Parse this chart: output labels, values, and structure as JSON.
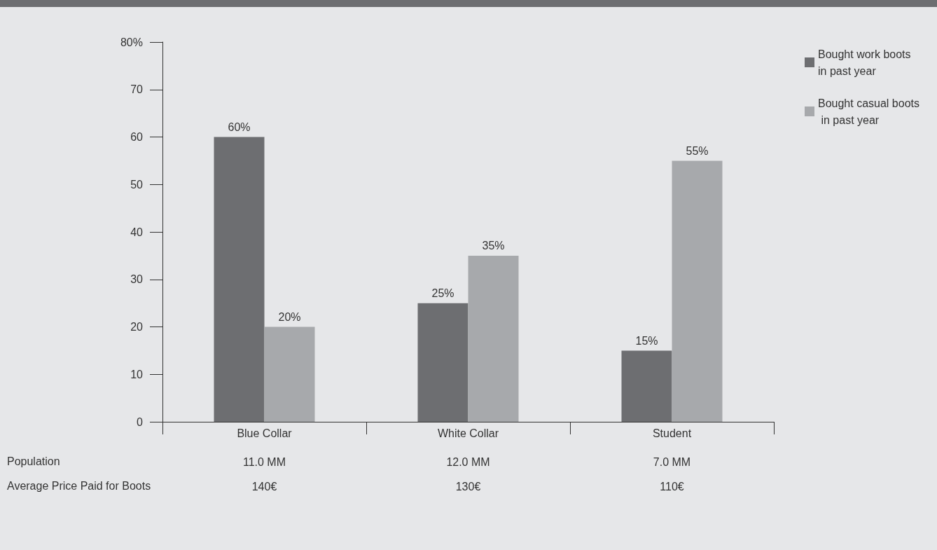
{
  "chart_data": {
    "type": "bar",
    "categories": [
      "Blue Collar",
      "White Collar",
      "Student"
    ],
    "series": [
      {
        "name": "Bought work boots in past year",
        "color": "#6d6e71",
        "values": [
          60,
          25,
          15
        ],
        "value_labels": [
          "60%",
          "25%",
          "15%"
        ]
      },
      {
        "name": "Bought casual boots in past year",
        "color": "#a7a9ac",
        "values": [
          20,
          35,
          55
        ],
        "value_labels": [
          "20%",
          "35%",
          "55%"
        ]
      }
    ],
    "ylim": [
      0,
      80
    ],
    "yticks": [
      0,
      10,
      20,
      30,
      40,
      50,
      60,
      70,
      {
        "value": 80,
        "label": "80%"
      }
    ],
    "grid": false,
    "legend": "top right",
    "annotations": [
      "Population",
      "11.0 MM",
      "12.0 MM",
      "7.0 MM",
      "Average Price Paid for Boots",
      "140€",
      "130€",
      "110€"
    ]
  }
}
